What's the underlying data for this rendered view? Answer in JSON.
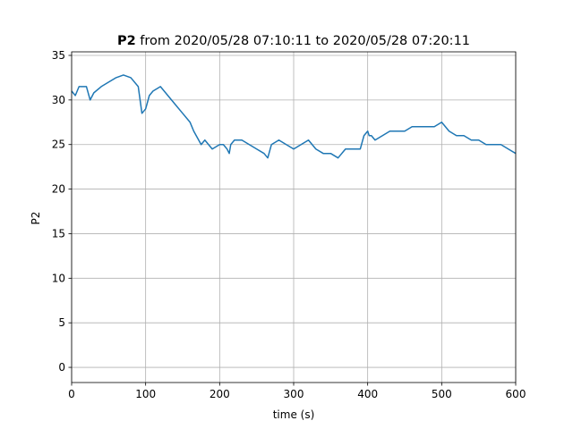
{
  "chart_data": {
    "type": "line",
    "title_bold": "P2",
    "title_rest": " from 2020/05/28 07:10:11 to 2020/05/28 07:20:11",
    "xlabel": "time (s)",
    "ylabel": "P2",
    "xlim": [
      0,
      600
    ],
    "ylim": [
      -1.7,
      35.4
    ],
    "xticks": [
      0,
      100,
      200,
      300,
      400,
      500,
      600
    ],
    "yticks": [
      0,
      5,
      10,
      15,
      20,
      25,
      30,
      35
    ],
    "grid": true,
    "legend": "none",
    "series": [
      {
        "color": "#1f77b4",
        "x": [
          0,
          5,
          10,
          20,
          25,
          30,
          40,
          50,
          60,
          70,
          80,
          90,
          95,
          100,
          105,
          110,
          120,
          130,
          140,
          150,
          160,
          165,
          175,
          180,
          190,
          200,
          205,
          210,
          213,
          215,
          220,
          230,
          240,
          250,
          260,
          265,
          270,
          280,
          290,
          300,
          310,
          320,
          330,
          340,
          350,
          360,
          370,
          380,
          390,
          395,
          400,
          402,
          405,
          410,
          420,
          430,
          440,
          450,
          460,
          470,
          480,
          490,
          500,
          510,
          520,
          530,
          540,
          550,
          560,
          570,
          580,
          590,
          600
        ],
        "y": [
          31,
          30.5,
          31.5,
          31.5,
          30,
          30.8,
          31.5,
          32,
          32.5,
          32.8,
          32.5,
          31.5,
          28.5,
          29,
          30.5,
          31,
          31.5,
          30.5,
          29.5,
          28.5,
          27.5,
          26.5,
          25,
          25.5,
          24.5,
          25,
          25,
          24.5,
          24,
          25,
          25.5,
          25.5,
          25,
          24.5,
          24,
          23.5,
          25,
          25.5,
          25,
          24.5,
          25,
          25.5,
          24.5,
          24,
          24,
          23.5,
          24.5,
          24.5,
          24.5,
          26,
          26.5,
          26,
          26,
          25.5,
          26,
          26.5,
          26.5,
          26.5,
          27,
          27,
          27,
          27,
          27.5,
          26.5,
          26,
          26,
          25.5,
          25.5,
          25,
          25,
          25,
          24.5,
          24
        ]
      }
    ]
  }
}
